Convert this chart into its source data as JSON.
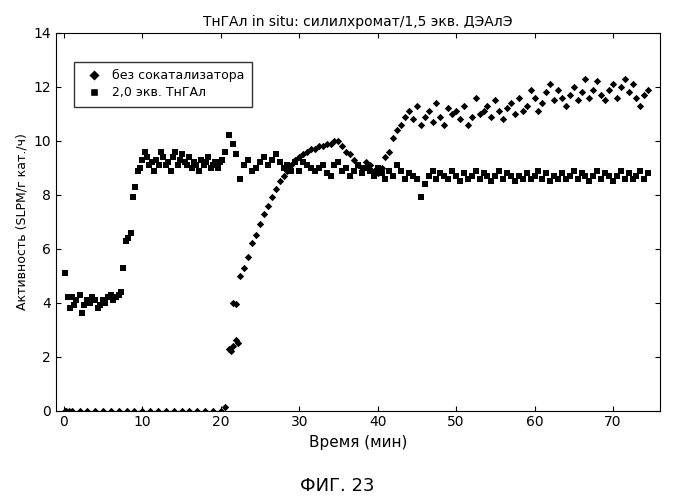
{
  "title": "ТнГАл in situ: силилхромат/1,5 экв. ДЭАлЭ",
  "xlabel": "Время (мин)",
  "ylabel": "Активность (SLPM/г кат./ч)",
  "fig_label": "ФИГ. 23",
  "xlim": [
    -1,
    76
  ],
  "ylim": [
    0,
    14
  ],
  "xticks": [
    0,
    10,
    20,
    30,
    40,
    50,
    60,
    70
  ],
  "yticks": [
    0,
    2,
    4,
    6,
    8,
    10,
    12,
    14
  ],
  "legend_label1": "без сокатализатора",
  "legend_label2": "2,0 экв. ТнГАл",
  "series1_color": "#000000",
  "series2_color": "#000000",
  "series1_diamond": [
    [
      0.1,
      0.0
    ],
    [
      0.3,
      0.0
    ],
    [
      0.6,
      0.0
    ],
    [
      1.0,
      0.0
    ],
    [
      2.0,
      0.0
    ],
    [
      3.0,
      0.0
    ],
    [
      4.0,
      0.0
    ],
    [
      5.0,
      0.0
    ],
    [
      6.0,
      0.0
    ],
    [
      7.0,
      0.0
    ],
    [
      8.0,
      0.0
    ],
    [
      9.0,
      0.0
    ],
    [
      10.0,
      0.0
    ],
    [
      11.0,
      0.0
    ],
    [
      12.0,
      0.0
    ],
    [
      13.0,
      0.0
    ],
    [
      14.0,
      0.0
    ],
    [
      15.0,
      0.0
    ],
    [
      16.0,
      0.0
    ],
    [
      17.0,
      0.0
    ],
    [
      18.0,
      0.0
    ],
    [
      19.0,
      0.0
    ],
    [
      20.0,
      0.0
    ],
    [
      20.5,
      0.15
    ],
    [
      21.5,
      4.0
    ],
    [
      22.0,
      3.95
    ],
    [
      22.5,
      5.0
    ],
    [
      23.0,
      5.3
    ],
    [
      23.5,
      5.7
    ],
    [
      24.0,
      6.2
    ],
    [
      24.5,
      6.5
    ],
    [
      25.0,
      6.9
    ],
    [
      25.5,
      7.3
    ],
    [
      26.0,
      7.6
    ],
    [
      26.5,
      7.9
    ],
    [
      27.0,
      8.2
    ],
    [
      27.5,
      8.5
    ],
    [
      28.0,
      8.7
    ],
    [
      28.5,
      8.9
    ],
    [
      29.0,
      9.1
    ],
    [
      29.5,
      9.3
    ],
    [
      30.0,
      9.4
    ],
    [
      30.5,
      9.5
    ],
    [
      31.0,
      9.6
    ],
    [
      31.5,
      9.7
    ],
    [
      32.0,
      9.7
    ],
    [
      32.5,
      9.8
    ],
    [
      33.0,
      9.8
    ],
    [
      33.5,
      9.9
    ],
    [
      34.0,
      9.9
    ],
    [
      34.5,
      10.0
    ],
    [
      35.0,
      10.0
    ],
    [
      35.5,
      9.8
    ],
    [
      36.0,
      9.6
    ],
    [
      36.5,
      9.5
    ],
    [
      37.0,
      9.3
    ],
    [
      37.5,
      9.1
    ],
    [
      38.0,
      9.0
    ],
    [
      38.5,
      9.2
    ],
    [
      39.0,
      9.1
    ],
    [
      39.5,
      8.9
    ],
    [
      40.0,
      8.8
    ],
    [
      40.5,
      9.0
    ],
    [
      41.0,
      9.4
    ],
    [
      41.5,
      9.6
    ],
    [
      42.0,
      10.1
    ],
    [
      42.5,
      10.4
    ],
    [
      43.0,
      10.6
    ],
    [
      43.5,
      10.9
    ],
    [
      44.0,
      11.1
    ],
    [
      44.5,
      10.8
    ],
    [
      45.0,
      11.3
    ],
    [
      45.5,
      10.6
    ],
    [
      46.0,
      10.9
    ],
    [
      46.5,
      11.1
    ],
    [
      47.0,
      10.7
    ],
    [
      47.5,
      11.4
    ],
    [
      48.0,
      10.9
    ],
    [
      48.5,
      10.6
    ],
    [
      49.0,
      11.2
    ],
    [
      49.5,
      11.0
    ],
    [
      50.0,
      11.1
    ],
    [
      50.5,
      10.8
    ],
    [
      51.0,
      11.3
    ],
    [
      51.5,
      10.6
    ],
    [
      52.0,
      10.9
    ],
    [
      52.5,
      11.6
    ],
    [
      53.0,
      11.0
    ],
    [
      53.5,
      11.1
    ],
    [
      54.0,
      11.3
    ],
    [
      54.5,
      10.9
    ],
    [
      55.0,
      11.5
    ],
    [
      55.5,
      11.1
    ],
    [
      56.0,
      10.8
    ],
    [
      56.5,
      11.2
    ],
    [
      57.0,
      11.4
    ],
    [
      57.5,
      11.0
    ],
    [
      58.0,
      11.6
    ],
    [
      58.5,
      11.1
    ],
    [
      59.0,
      11.3
    ],
    [
      59.5,
      11.9
    ],
    [
      60.0,
      11.6
    ],
    [
      60.5,
      11.1
    ],
    [
      61.0,
      11.4
    ],
    [
      61.5,
      11.8
    ],
    [
      62.0,
      12.1
    ],
    [
      62.5,
      11.5
    ],
    [
      63.0,
      11.9
    ],
    [
      63.5,
      11.6
    ],
    [
      64.0,
      11.3
    ],
    [
      64.5,
      11.7
    ],
    [
      65.0,
      12.0
    ],
    [
      65.5,
      11.5
    ],
    [
      66.0,
      11.8
    ],
    [
      66.5,
      12.3
    ],
    [
      67.0,
      11.6
    ],
    [
      67.5,
      11.9
    ],
    [
      68.0,
      12.2
    ],
    [
      68.5,
      11.7
    ],
    [
      69.0,
      11.5
    ],
    [
      69.5,
      11.9
    ],
    [
      70.0,
      12.1
    ],
    [
      70.5,
      11.6
    ],
    [
      71.0,
      12.0
    ],
    [
      71.5,
      12.3
    ],
    [
      72.0,
      11.8
    ],
    [
      72.5,
      12.1
    ],
    [
      73.0,
      11.6
    ],
    [
      73.5,
      11.3
    ],
    [
      74.0,
      11.7
    ],
    [
      74.5,
      11.9
    ]
  ],
  "series2_square": [
    [
      0.2,
      5.1
    ],
    [
      0.5,
      4.2
    ],
    [
      0.8,
      3.8
    ],
    [
      1.0,
      4.2
    ],
    [
      1.3,
      3.9
    ],
    [
      1.6,
      4.1
    ],
    [
      2.0,
      4.3
    ],
    [
      2.3,
      3.6
    ],
    [
      2.6,
      3.9
    ],
    [
      3.0,
      4.1
    ],
    [
      3.3,
      4.0
    ],
    [
      3.6,
      4.2
    ],
    [
      4.0,
      4.1
    ],
    [
      4.3,
      3.8
    ],
    [
      4.6,
      3.9
    ],
    [
      5.0,
      4.1
    ],
    [
      5.3,
      4.0
    ],
    [
      5.6,
      4.2
    ],
    [
      6.0,
      4.3
    ],
    [
      6.3,
      4.1
    ],
    [
      6.6,
      4.2
    ],
    [
      7.0,
      4.3
    ],
    [
      7.3,
      4.4
    ],
    [
      7.6,
      5.3
    ],
    [
      7.9,
      6.3
    ],
    [
      8.2,
      6.4
    ],
    [
      8.5,
      6.6
    ],
    [
      8.8,
      7.9
    ],
    [
      9.1,
      8.3
    ],
    [
      9.4,
      8.9
    ],
    [
      9.7,
      9.0
    ],
    [
      10.0,
      9.3
    ],
    [
      10.3,
      9.6
    ],
    [
      10.6,
      9.4
    ],
    [
      10.9,
      9.1
    ],
    [
      11.2,
      9.2
    ],
    [
      11.5,
      8.9
    ],
    [
      11.8,
      9.3
    ],
    [
      12.1,
      9.1
    ],
    [
      12.4,
      9.6
    ],
    [
      12.7,
      9.4
    ],
    [
      13.0,
      9.1
    ],
    [
      13.3,
      9.2
    ],
    [
      13.6,
      8.9
    ],
    [
      13.9,
      9.4
    ],
    [
      14.2,
      9.6
    ],
    [
      14.5,
      9.1
    ],
    [
      14.8,
      9.3
    ],
    [
      15.1,
      9.5
    ],
    [
      15.4,
      9.2
    ],
    [
      15.7,
      9.1
    ],
    [
      16.0,
      9.4
    ],
    [
      16.3,
      9.0
    ],
    [
      16.6,
      9.2
    ],
    [
      16.9,
      9.1
    ],
    [
      17.2,
      8.9
    ],
    [
      17.5,
      9.3
    ],
    [
      17.8,
      9.1
    ],
    [
      18.1,
      9.2
    ],
    [
      18.4,
      9.4
    ],
    [
      18.7,
      9.0
    ],
    [
      19.0,
      9.1
    ],
    [
      19.3,
      9.2
    ],
    [
      19.6,
      9.0
    ],
    [
      19.9,
      9.2
    ],
    [
      20.2,
      9.3
    ],
    [
      20.5,
      9.6
    ],
    [
      21.0,
      10.2
    ],
    [
      21.5,
      9.9
    ],
    [
      22.0,
      9.5
    ],
    [
      22.5,
      8.6
    ],
    [
      23.0,
      9.1
    ],
    [
      23.5,
      9.3
    ],
    [
      24.0,
      8.9
    ],
    [
      24.5,
      9.0
    ],
    [
      25.0,
      9.2
    ],
    [
      25.5,
      9.4
    ],
    [
      26.0,
      9.1
    ],
    [
      26.5,
      9.3
    ],
    [
      27.0,
      9.5
    ],
    [
      27.5,
      9.2
    ],
    [
      28.0,
      9.0
    ],
    [
      28.5,
      9.1
    ],
    [
      29.0,
      8.9
    ],
    [
      29.5,
      9.2
    ],
    [
      30.0,
      8.9
    ],
    [
      30.5,
      9.2
    ],
    [
      31.0,
      9.1
    ],
    [
      31.5,
      9.0
    ],
    [
      32.0,
      8.9
    ],
    [
      32.5,
      9.0
    ],
    [
      33.0,
      9.1
    ],
    [
      33.5,
      8.8
    ],
    [
      34.0,
      8.7
    ],
    [
      34.5,
      9.1
    ],
    [
      35.0,
      9.2
    ],
    [
      35.5,
      8.9
    ],
    [
      36.0,
      9.0
    ],
    [
      36.5,
      8.7
    ],
    [
      37.0,
      8.9
    ],
    [
      37.5,
      9.1
    ],
    [
      38.0,
      8.8
    ],
    [
      38.5,
      9.0
    ],
    [
      39.0,
      8.9
    ],
    [
      39.5,
      8.7
    ],
    [
      40.0,
      9.0
    ],
    [
      40.5,
      8.8
    ],
    [
      41.0,
      8.6
    ],
    [
      41.5,
      8.9
    ],
    [
      42.0,
      8.7
    ],
    [
      42.5,
      9.1
    ],
    [
      43.0,
      8.9
    ],
    [
      43.5,
      8.6
    ],
    [
      44.0,
      8.8
    ],
    [
      44.5,
      8.7
    ],
    [
      45.0,
      8.6
    ],
    [
      45.5,
      7.9
    ],
    [
      46.0,
      8.4
    ],
    [
      46.5,
      8.7
    ],
    [
      47.0,
      8.9
    ],
    [
      47.5,
      8.6
    ],
    [
      48.0,
      8.8
    ],
    [
      48.5,
      8.7
    ],
    [
      49.0,
      8.6
    ],
    [
      49.5,
      8.9
    ],
    [
      50.0,
      8.7
    ],
    [
      50.5,
      8.5
    ],
    [
      51.0,
      8.8
    ],
    [
      51.5,
      8.6
    ],
    [
      52.0,
      8.7
    ],
    [
      52.5,
      8.9
    ],
    [
      53.0,
      8.6
    ],
    [
      53.5,
      8.8
    ],
    [
      54.0,
      8.7
    ],
    [
      54.5,
      8.5
    ],
    [
      55.0,
      8.7
    ],
    [
      55.5,
      8.9
    ],
    [
      56.0,
      8.6
    ],
    [
      56.5,
      8.8
    ],
    [
      57.0,
      8.7
    ],
    [
      57.5,
      8.5
    ],
    [
      58.0,
      8.7
    ],
    [
      58.5,
      8.6
    ],
    [
      59.0,
      8.8
    ],
    [
      59.5,
      8.6
    ],
    [
      60.0,
      8.7
    ],
    [
      60.5,
      8.9
    ],
    [
      61.0,
      8.6
    ],
    [
      61.5,
      8.8
    ],
    [
      62.0,
      8.5
    ],
    [
      62.5,
      8.7
    ],
    [
      63.0,
      8.6
    ],
    [
      63.5,
      8.8
    ],
    [
      64.0,
      8.6
    ],
    [
      64.5,
      8.7
    ],
    [
      65.0,
      8.9
    ],
    [
      65.5,
      8.6
    ],
    [
      66.0,
      8.8
    ],
    [
      66.5,
      8.7
    ],
    [
      67.0,
      8.5
    ],
    [
      67.5,
      8.7
    ],
    [
      68.0,
      8.9
    ],
    [
      68.5,
      8.6
    ],
    [
      69.0,
      8.8
    ],
    [
      69.5,
      8.7
    ],
    [
      70.0,
      8.5
    ],
    [
      70.5,
      8.7
    ],
    [
      71.0,
      8.9
    ],
    [
      71.5,
      8.6
    ],
    [
      72.0,
      8.8
    ],
    [
      72.5,
      8.6
    ],
    [
      73.0,
      8.7
    ],
    [
      73.5,
      8.9
    ],
    [
      74.0,
      8.6
    ],
    [
      74.5,
      8.8
    ]
  ],
  "series2_diamond_early": [
    [
      21.0,
      2.3
    ],
    [
      21.3,
      2.2
    ],
    [
      21.6,
      2.4
    ],
    [
      21.9,
      2.6
    ],
    [
      22.2,
      2.5
    ]
  ]
}
